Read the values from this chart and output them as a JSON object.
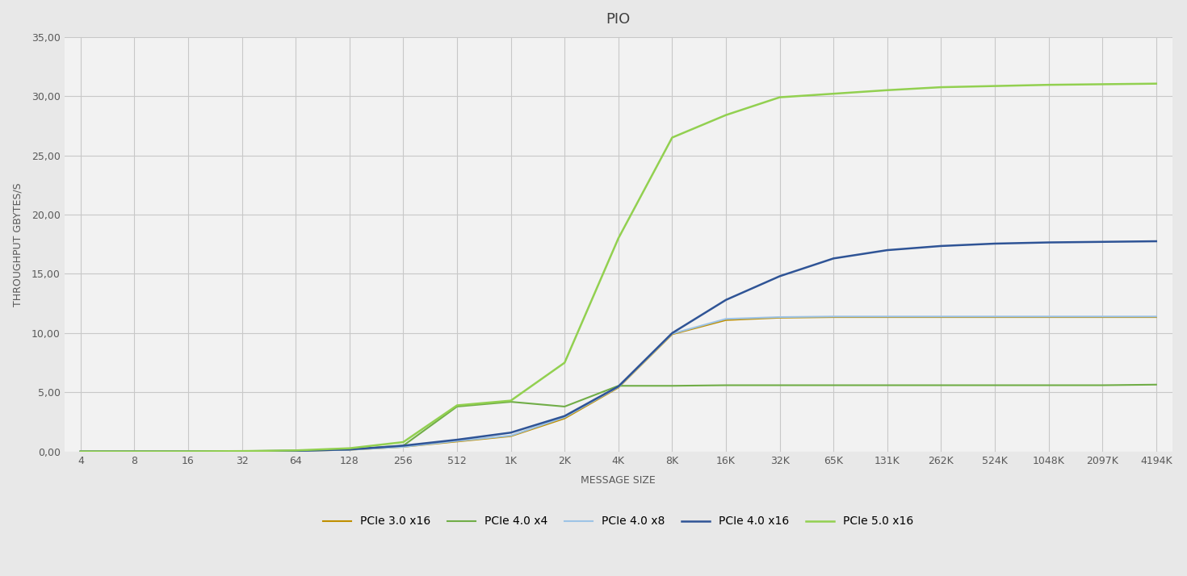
{
  "title": "PIO",
  "xlabel": "MESSAGE SIZE",
  "ylabel": "THROUGHPUT GBYTES/S",
  "x_labels": [
    "4",
    "8",
    "16",
    "32",
    "64",
    "128",
    "256",
    "512",
    "1K",
    "2K",
    "4K",
    "8K",
    "16K",
    "32K",
    "65K",
    "131K",
    "262K",
    "524K",
    "1048K",
    "2097K",
    "4194K"
  ],
  "ylim": [
    0,
    35
  ],
  "yticks": [
    0.0,
    5.0,
    10.0,
    15.0,
    20.0,
    25.0,
    30.0,
    35.0
  ],
  "ytick_labels": [
    "0,00",
    "5,00",
    "10,00",
    "15,00",
    "20,00",
    "25,00",
    "30,00",
    "35,00"
  ],
  "fig_bg_color": "#e8e8e8",
  "plot_bg_color": "#f2f2f2",
  "grid_color": "#c8c8c8",
  "series": [
    {
      "label": "PCIe 3.0 x16",
      "color": "#bf8f00",
      "linewidth": 1.5,
      "values": [
        0.01,
        0.01,
        0.02,
        0.03,
        0.06,
        0.15,
        0.4,
        0.85,
        1.3,
        2.8,
        5.4,
        9.9,
        11.1,
        11.3,
        11.35,
        11.35,
        11.35,
        11.35,
        11.35,
        11.35,
        11.35
      ]
    },
    {
      "label": "PCIe 4.0 x4",
      "color": "#70ad47",
      "linewidth": 1.5,
      "values": [
        0.01,
        0.01,
        0.02,
        0.03,
        0.08,
        0.18,
        0.5,
        3.8,
        4.2,
        3.8,
        5.55,
        5.55,
        5.6,
        5.6,
        5.6,
        5.6,
        5.6,
        5.6,
        5.6,
        5.6,
        5.65
      ]
    },
    {
      "label": "PCIe 4.0 x8",
      "color": "#9dc3e6",
      "linewidth": 1.5,
      "values": [
        0.01,
        0.01,
        0.02,
        0.03,
        0.06,
        0.15,
        0.4,
        0.9,
        1.35,
        2.9,
        5.45,
        9.95,
        11.2,
        11.35,
        11.4,
        11.4,
        11.4,
        11.4,
        11.4,
        11.4,
        11.4
      ]
    },
    {
      "label": "PCIe 4.0 x16",
      "color": "#2f5496",
      "linewidth": 1.8,
      "values": [
        0.01,
        0.01,
        0.02,
        0.03,
        0.06,
        0.18,
        0.5,
        1.0,
        1.6,
        3.0,
        5.5,
        10.0,
        12.8,
        14.8,
        16.3,
        17.0,
        17.35,
        17.55,
        17.65,
        17.7,
        17.75
      ]
    },
    {
      "label": "PCIe 5.0 x16",
      "color": "#92d050",
      "linewidth": 1.8,
      "values": [
        0.01,
        0.01,
        0.02,
        0.04,
        0.1,
        0.28,
        0.8,
        3.9,
        4.3,
        7.5,
        18.0,
        26.5,
        28.4,
        29.9,
        30.2,
        30.5,
        30.75,
        30.85,
        30.95,
        31.0,
        31.05
      ]
    }
  ],
  "legend_labels": [
    "PCIe 3.0 x16",
    "PCIe 4.0 x4",
    "PCIe 4.0 x8",
    "PCIe 4.0 x16",
    "PCIe 5.0 x16"
  ],
  "legend_colors": [
    "#bf8f00",
    "#70ad47",
    "#9dc3e6",
    "#2f5496",
    "#92d050"
  ],
  "legend_linewidths": [
    1.5,
    1.5,
    1.5,
    1.8,
    1.8
  ]
}
